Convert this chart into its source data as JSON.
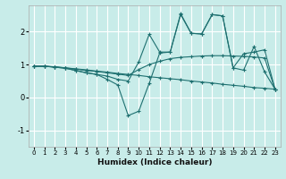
{
  "bg_color": "#c8ece9",
  "grid_color": "#ffffff",
  "line_color": "#1e7070",
  "xlabel": "Humidex (Indice chaleur)",
  "xlim": [
    -0.5,
    23.5
  ],
  "ylim": [
    -1.5,
    2.8
  ],
  "yticks": [
    -1,
    0,
    1,
    2
  ],
  "xticks": [
    0,
    1,
    2,
    3,
    4,
    5,
    6,
    7,
    8,
    9,
    10,
    11,
    12,
    13,
    14,
    15,
    16,
    17,
    18,
    19,
    20,
    21,
    22,
    23
  ],
  "lines": [
    {
      "x": [
        0,
        1,
        2,
        3,
        4,
        5,
        6,
        7,
        8,
        9,
        10,
        11,
        12,
        13,
        14,
        15,
        16,
        17,
        18,
        19,
        20,
        21,
        22,
        23
      ],
      "y": [
        0.95,
        0.95,
        0.93,
        0.9,
        0.87,
        0.84,
        0.8,
        0.77,
        0.73,
        0.7,
        0.67,
        0.63,
        0.6,
        0.57,
        0.54,
        0.5,
        0.47,
        0.44,
        0.4,
        0.37,
        0.34,
        0.3,
        0.28,
        0.25
      ]
    },
    {
      "x": [
        0,
        1,
        2,
        3,
        4,
        5,
        6,
        7,
        8,
        9,
        10,
        11,
        12,
        13,
        14,
        15,
        16,
        17,
        18,
        19,
        20,
        21,
        22,
        23
      ],
      "y": [
        0.95,
        0.95,
        0.93,
        0.9,
        0.86,
        0.82,
        0.79,
        0.75,
        0.71,
        0.67,
        0.85,
        1.0,
        1.1,
        1.18,
        1.22,
        1.24,
        1.26,
        1.27,
        1.27,
        1.26,
        1.25,
        1.23,
        1.2,
        0.25
      ]
    },
    {
      "x": [
        0,
        1,
        2,
        3,
        4,
        5,
        6,
        7,
        8,
        9,
        10,
        11,
        12,
        13,
        14,
        15,
        16,
        17,
        18,
        19,
        20,
        21,
        22,
        23
      ],
      "y": [
        0.95,
        0.95,
        0.92,
        0.89,
        0.82,
        0.75,
        0.7,
        0.55,
        0.38,
        -0.55,
        -0.42,
        0.43,
        1.35,
        1.38,
        2.52,
        1.95,
        1.93,
        2.52,
        2.48,
        0.9,
        0.83,
        1.55,
        0.78,
        0.25
      ]
    },
    {
      "x": [
        0,
        1,
        2,
        3,
        4,
        5,
        6,
        7,
        8,
        9,
        10,
        11,
        12,
        13,
        14,
        15,
        16,
        17,
        18,
        19,
        20,
        21,
        22,
        23
      ],
      "y": [
        0.95,
        0.95,
        0.92,
        0.89,
        0.82,
        0.75,
        0.7,
        0.65,
        0.55,
        0.5,
        1.08,
        1.92,
        1.38,
        1.38,
        2.55,
        1.95,
        1.93,
        2.52,
        2.48,
        0.9,
        1.33,
        1.38,
        1.45,
        0.25
      ]
    }
  ]
}
